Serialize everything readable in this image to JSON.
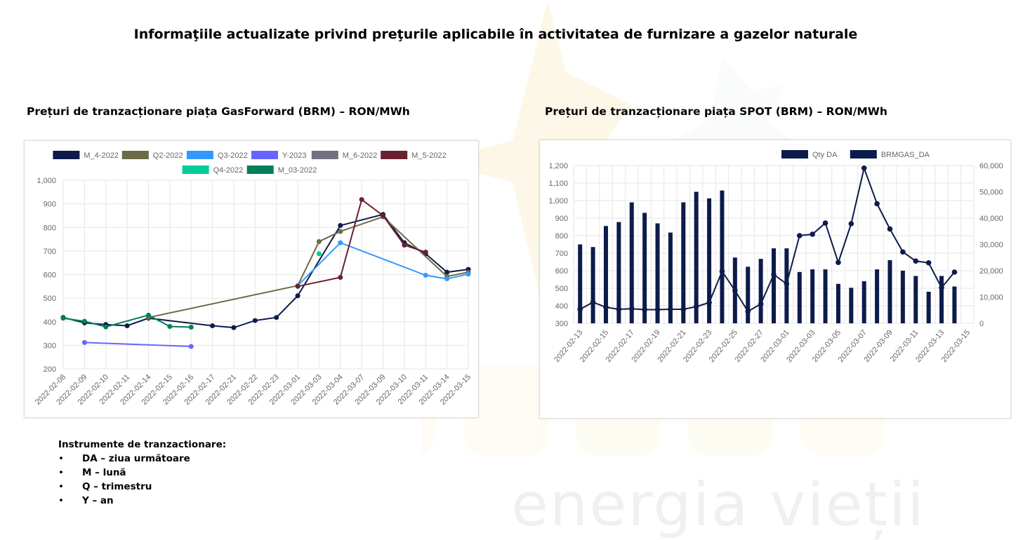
{
  "page_title": "Informaţiile actualizate privind preţurile aplicabile în activitatea de furnizare a gazelor naturale",
  "watermark_text": "energia vieții",
  "left_chart_title": "Prețuri de tranzacționare piața GasForward (BRM) – RON/MWh",
  "right_chart_title": "Prețuri de tranzacționare piața SPOT (BRM) – RON/MWh",
  "instruments": {
    "heading": "Instrumente de tranzactionare:",
    "items": [
      "DA – ziua următoare",
      "M – lună",
      "Q – trimestru",
      "Y – an"
    ]
  },
  "chart_data": [
    {
      "type": "line",
      "categories": [
        "2022-02-08",
        "2022-02-09",
        "2022-02-10",
        "2022-02-11",
        "2022-02-14",
        "2022-02-15",
        "2022-02-16",
        "2022-02-17",
        "2022-02-21",
        "2022-02-22",
        "2022-02-23",
        "2022-03-01",
        "2022-03-03",
        "2022-03-04",
        "2022-03-07",
        "2022-03-09",
        "2022-03-10",
        "2022-03-11",
        "2022-03-14",
        "2022-03-15"
      ],
      "ylim": [
        200,
        1000
      ],
      "yticks": [
        "200",
        "300",
        "400",
        "500",
        "600",
        "700",
        "800",
        "900",
        "1,000"
      ],
      "legend_position": "top",
      "grid": true,
      "series": [
        {
          "name": "M_4-2022",
          "color": "#0d1b4b",
          "values": [
            418,
            395,
            388,
            383,
            415,
            null,
            null,
            383,
            375,
            405,
            418,
            510,
            null,
            808,
            null,
            855,
            735,
            688,
            610,
            622
          ]
        },
        {
          "name": "Q2-2022",
          "color": "#6b6b47",
          "values": [
            null,
            null,
            null,
            null,
            418,
            null,
            null,
            null,
            null,
            null,
            null,
            553,
            740,
            783,
            null,
            845,
            null,
            null,
            592,
            610
          ]
        },
        {
          "name": "Q3-2022",
          "color": "#3399ff",
          "values": [
            null,
            null,
            null,
            null,
            null,
            null,
            null,
            null,
            null,
            null,
            null,
            553,
            null,
            735,
            null,
            null,
            null,
            597,
            582,
            602
          ]
        },
        {
          "name": "Y-2023",
          "color": "#6666ff",
          "values": [
            null,
            312,
            null,
            null,
            null,
            null,
            295,
            null,
            null,
            null,
            null,
            null,
            null,
            null,
            null,
            null,
            null,
            null,
            null,
            null
          ]
        },
        {
          "name": "M_6-2022",
          "color": "#707080",
          "values": [
            null,
            null,
            null,
            null,
            null,
            null,
            null,
            null,
            null,
            null,
            null,
            null,
            null,
            null,
            null,
            null,
            null,
            null,
            null,
            null
          ]
        },
        {
          "name": "M_5-2022",
          "color": "#6b2030",
          "values": [
            null,
            null,
            null,
            null,
            null,
            null,
            null,
            null,
            null,
            null,
            null,
            550,
            null,
            588,
            918,
            850,
            725,
            695,
            null,
            null
          ]
        },
        {
          "name": "Q4-2022",
          "color": "#00cc99",
          "values": [
            null,
            null,
            null,
            null,
            null,
            null,
            null,
            null,
            null,
            null,
            null,
            null,
            688,
            null,
            null,
            null,
            null,
            null,
            null,
            null
          ]
        },
        {
          "name": "M_03-2022",
          "color": "#00805a",
          "values": [
            415,
            402,
            378,
            null,
            428,
            380,
            377,
            null,
            null,
            null,
            null,
            null,
            null,
            null,
            null,
            null,
            null,
            null,
            null,
            null
          ]
        }
      ]
    },
    {
      "type": "bar+line",
      "categories": [
        "2022-02-13",
        "2022-02-14",
        "2022-02-15",
        "2022-02-16",
        "2022-02-17",
        "2022-02-18",
        "2022-02-19",
        "2022-02-20",
        "2022-02-21",
        "2022-02-22",
        "2022-02-23",
        "2022-02-24",
        "2022-02-25",
        "2022-02-26",
        "2022-02-27",
        "2022-02-28",
        "2022-03-01",
        "2022-03-02",
        "2022-03-03",
        "2022-03-04",
        "2022-03-05",
        "2022-03-06",
        "2022-03-07",
        "2022-03-08",
        "2022-03-09",
        "2022-03-10",
        "2022-03-11",
        "2022-03-12",
        "2022-03-13",
        "2022-03-14",
        "2022-03-15"
      ],
      "xtick_labels": [
        "2022-02-13",
        "2022-02-15",
        "2022-02-17",
        "2022-02-19",
        "2022-02-21",
        "2022-02-23",
        "2022-02-25",
        "2022-02-27",
        "2022-03-01",
        "2022-03-03",
        "2022-03-05",
        "2022-03-07",
        "2022-03-09",
        "2022-03-11",
        "2022-03-13",
        "2022-03-15"
      ],
      "y_left_lim": [
        300,
        1200
      ],
      "y_left_ticks": [
        "300",
        "400",
        "500",
        "600",
        "700",
        "800",
        "900",
        "1,000",
        "1,100",
        "1,200"
      ],
      "y_right_lim": [
        0,
        60000
      ],
      "y_right_ticks": [
        "0",
        "10,000",
        "20,000",
        "30,000",
        "40,000",
        "50,000",
        "60,000"
      ],
      "legend_position": "top",
      "series": [
        {
          "name": "Qty DA",
          "color": "#0d1b4b",
          "type": "bar",
          "axis": "right",
          "values": [
            30000,
            29000,
            37000,
            38500,
            46000,
            42000,
            38000,
            34500,
            46000,
            50000,
            47500,
            50500,
            25000,
            21500,
            24500,
            28500,
            28500,
            19500,
            20500,
            20500,
            15000,
            13500,
            16000,
            20500,
            24000,
            20000,
            18000,
            12000,
            18000,
            14000,
            0
          ]
        },
        {
          "name": "BRMGAS_DA",
          "color": "#0d1b4b",
          "type": "line",
          "axis": "left",
          "values": [
            380,
            420,
            392,
            380,
            383,
            378,
            378,
            380,
            380,
            395,
            418,
            596,
            487,
            368,
            410,
            578,
            525,
            800,
            808,
            872,
            647,
            868,
            1185,
            982,
            838,
            707,
            655,
            645,
            503,
            592,
            null
          ]
        }
      ]
    }
  ]
}
